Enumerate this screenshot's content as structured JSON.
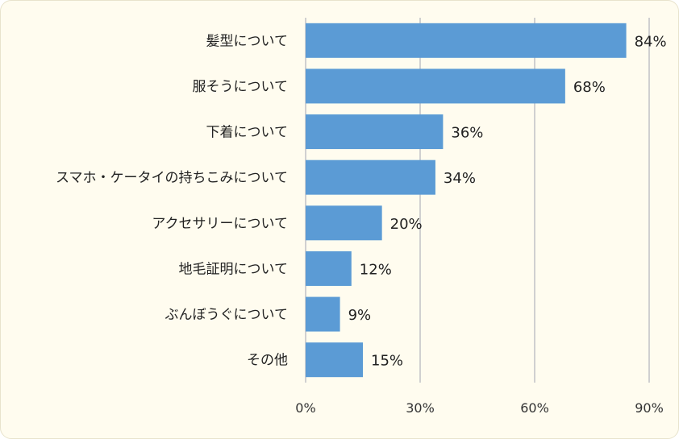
{
  "chart_data": {
    "type": "bar",
    "orientation": "horizontal",
    "categories": [
      "髪型について",
      "服そうについて",
      "下着について",
      "スマホ・ケータイの持ちこみについて",
      "アクセサリーについて",
      "地毛証明について",
      "ぶんぼうぐについて",
      "その他"
    ],
    "values": [
      84,
      68,
      36,
      34,
      20,
      12,
      9,
      15
    ],
    "value_labels": [
      "84%",
      "68%",
      "36%",
      "34%",
      "20%",
      "12%",
      "9%",
      "15%"
    ],
    "xlim": [
      0,
      90
    ],
    "xticks": [
      0,
      30,
      60,
      90
    ],
    "xtick_labels": [
      "0%",
      "30%",
      "60%",
      "90%"
    ],
    "grid": "vertical",
    "legend": "none",
    "bar_color": "#5b9bd5",
    "grid_color": "#d0d0d0",
    "background_color": "#fffcef"
  }
}
